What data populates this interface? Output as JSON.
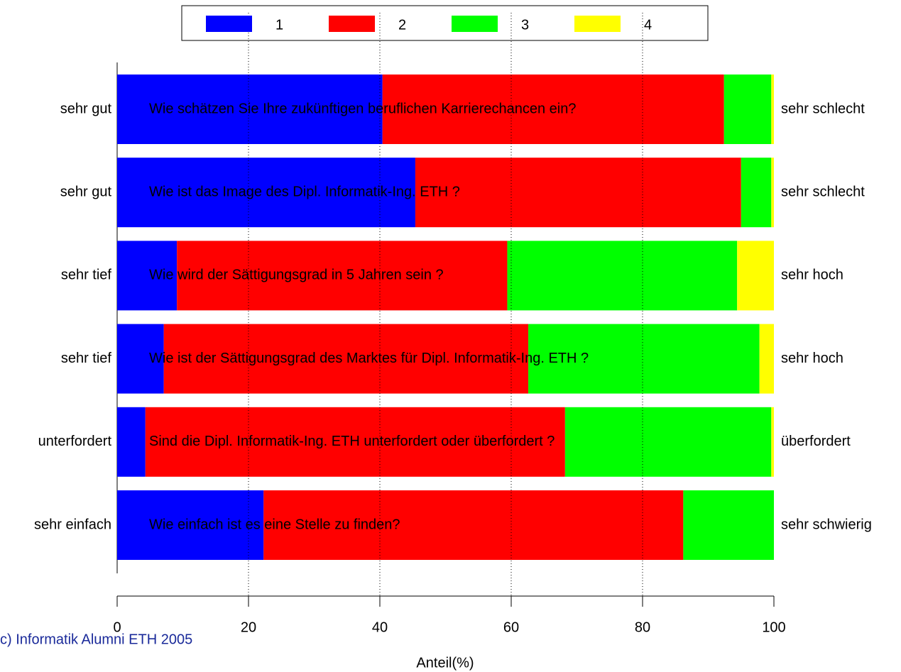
{
  "chart_data": {
    "type": "stacked-barh",
    "categories": [
      "Wie schätzen Sie Ihre zukünftigen beruflichen Karrierechancen ein?",
      "Wie ist das Image des Dipl. Informatik-Ing. ETH ?",
      "Wie wird der Sättigungsgrad in 5 Jahren sein ?",
      "Wie ist der Sättigungsgrad des Marktes für Dipl. Informatik-Ing. ETH ?",
      "Sind die Dipl. Informatik-Ing. ETH unterfordert oder überfordert ?",
      "Wie einfach ist es eine Stelle zu finden?"
    ],
    "left_labels": [
      "sehr gut",
      "sehr gut",
      "sehr tief",
      "sehr tief",
      "unterfordert",
      "sehr einfach"
    ],
    "right_labels": [
      "sehr schlecht",
      "sehr schlecht",
      "sehr hoch",
      "sehr hoch",
      "überfordert",
      "sehr schwierig"
    ],
    "series": [
      {
        "name": "1",
        "color": "#0000ff",
        "values": [
          40.4,
          45.4,
          9.1,
          7.1,
          4.3,
          22.3
        ]
      },
      {
        "name": "2",
        "color": "#ff0000",
        "values": [
          52.0,
          49.6,
          50.3,
          55.5,
          63.9,
          63.9
        ]
      },
      {
        "name": "3",
        "color": "#00ff00",
        "values": [
          7.2,
          4.6,
          35.0,
          35.2,
          31.4,
          13.8
        ]
      },
      {
        "name": "4",
        "color": "#ffff00",
        "values": [
          0.4,
          0.4,
          5.6,
          2.2,
          0.4,
          0
        ]
      }
    ],
    "xlabel": "Anteil(%)",
    "xlim": [
      0,
      100
    ],
    "xticks": [
      0,
      20,
      40,
      60,
      80,
      100
    ],
    "grid": true,
    "footer": "c) Informatik Alumni ETH 2005"
  }
}
